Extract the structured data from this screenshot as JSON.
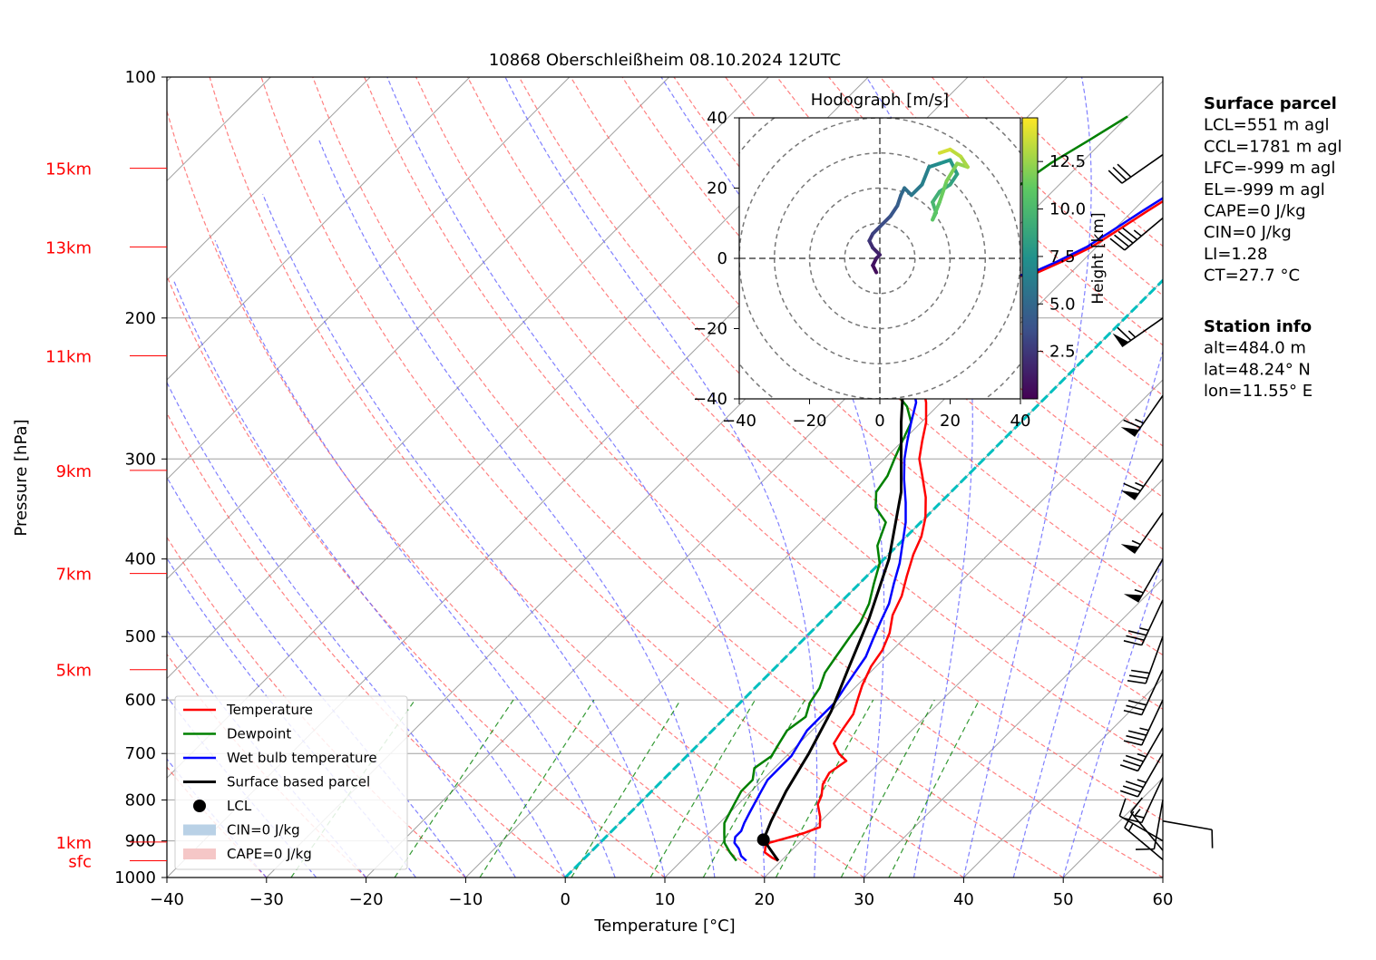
{
  "chart_data": {
    "type": "skew-t log-p",
    "title": "10868 Oberschleißheim 08.10.2024 12UTC",
    "xlabel": "Temperature [°C]",
    "ylabel": "Pressure [hPa]",
    "xlim": [
      -40,
      60
    ],
    "ylim": [
      1000,
      100
    ],
    "y_scale": "log",
    "x_ticks": [
      "−40",
      "−30",
      "−20",
      "−10",
      "0",
      "10",
      "20",
      "30",
      "40",
      "50",
      "60"
    ],
    "y_ticks": [
      "100",
      "200",
      "300",
      "400",
      "500",
      "600",
      "700",
      "800",
      "900",
      "1000"
    ],
    "height_labels": [
      {
        "label": "15km",
        "p": 130
      },
      {
        "label": "13km",
        "p": 163
      },
      {
        "label": "11km",
        "p": 223
      },
      {
        "label": "9km",
        "p": 310
      },
      {
        "label": "7km",
        "p": 417
      },
      {
        "label": "5km",
        "p": 550
      },
      {
        "label": "1km",
        "p": 903
      },
      {
        "label": "sfc",
        "p": 953
      }
    ],
    "series": [
      {
        "name": "Temperature",
        "color": "#ff0000",
        "points": [
          [
            19.7,
            953
          ],
          [
            18.8,
            945
          ],
          [
            17.5,
            930
          ],
          [
            17.0,
            915
          ],
          [
            17.0,
            905
          ],
          [
            18.0,
            895
          ],
          [
            19.5,
            880
          ],
          [
            20.5,
            865
          ],
          [
            19.5,
            840
          ],
          [
            18.0,
            810
          ],
          [
            17.5,
            790
          ],
          [
            16.5,
            765
          ],
          [
            16.0,
            740
          ],
          [
            16.5,
            715
          ],
          [
            15.0,
            700
          ],
          [
            13.5,
            680
          ],
          [
            13.0,
            655
          ],
          [
            12.5,
            625
          ],
          [
            11.5,
            600
          ],
          [
            10.5,
            575
          ],
          [
            9.5,
            545
          ],
          [
            9.0,
            520
          ],
          [
            8.0,
            495
          ],
          [
            6.5,
            470
          ],
          [
            5.5,
            445
          ],
          [
            4.0,
            420
          ],
          [
            2.5,
            395
          ],
          [
            1.5,
            375
          ],
          [
            0.0,
            355
          ],
          [
            -2.0,
            335
          ],
          [
            -4.5,
            315
          ],
          [
            -6.5,
            300
          ],
          [
            -8.0,
            285
          ],
          [
            -9.5,
            270
          ],
          [
            -11.5,
            255
          ],
          [
            -14.0,
            240
          ],
          [
            -16.0,
            225
          ],
          [
            -17.5,
            212
          ],
          [
            -19.0,
            203
          ],
          [
            -20.0,
            196
          ],
          [
            -19.5,
            186
          ],
          [
            -17.5,
            180
          ],
          [
            -13.5,
            176
          ],
          [
            -12.0,
            170
          ],
          [
            -10.5,
            163
          ],
          [
            -9.5,
            155
          ],
          [
            -8.5,
            147
          ],
          [
            -7.5,
            140
          ],
          [
            -6.5,
            135
          ],
          [
            -5.5,
            128
          ],
          [
            -4.0,
            122
          ],
          [
            -2.5,
            118
          ]
        ]
      },
      {
        "name": "Dewpoint",
        "color": "#008000",
        "points": [
          [
            15.5,
            953
          ],
          [
            14.0,
            930
          ],
          [
            12.5,
            905
          ],
          [
            11.5,
            880
          ],
          [
            10.5,
            855
          ],
          [
            10.0,
            830
          ],
          [
            9.5,
            805
          ],
          [
            9.0,
            780
          ],
          [
            9.0,
            755
          ],
          [
            8.0,
            730
          ],
          [
            8.5,
            705
          ],
          [
            8.0,
            680
          ],
          [
            7.5,
            655
          ],
          [
            8.0,
            630
          ],
          [
            7.0,
            605
          ],
          [
            6.5,
            580
          ],
          [
            5.5,
            555
          ],
          [
            5.0,
            530
          ],
          [
            4.5,
            505
          ],
          [
            4.0,
            480
          ],
          [
            3.0,
            455
          ],
          [
            1.5,
            430
          ],
          [
            0.0,
            405
          ],
          [
            -2.0,
            385
          ],
          [
            -3.5,
            360
          ],
          [
            -6.0,
            345
          ],
          [
            -7.5,
            330
          ],
          [
            -8.0,
            315
          ],
          [
            -9.0,
            300
          ],
          [
            -10.0,
            285
          ],
          [
            -11.0,
            270
          ],
          [
            -13.0,
            258
          ],
          [
            -15.5,
            248
          ],
          [
            -17.0,
            238
          ],
          [
            -17.5,
            228
          ],
          [
            -19.0,
            220
          ],
          [
            -19.5,
            210
          ],
          [
            -21.0,
            200
          ],
          [
            -21.0,
            190
          ],
          [
            -24.0,
            182
          ],
          [
            -23.5,
            175
          ],
          [
            -28.0,
            168
          ],
          [
            -33.0,
            164
          ],
          [
            -26.5,
            160
          ],
          [
            -24.5,
            153
          ],
          [
            -25.0,
            145
          ],
          [
            -24.0,
            137
          ],
          [
            -23.0,
            128
          ],
          [
            -21.5,
            120
          ],
          [
            -20.0,
            112
          ]
        ]
      },
      {
        "name": "Wet bulb temperature",
        "color": "#0000ff",
        "points": [
          [
            16.5,
            953
          ],
          [
            15.5,
            940
          ],
          [
            14.5,
            920
          ],
          [
            13.5,
            905
          ],
          [
            13.0,
            890
          ],
          [
            13.0,
            875
          ],
          [
            12.5,
            855
          ],
          [
            12.0,
            830
          ],
          [
            11.5,
            805
          ],
          [
            11.0,
            780
          ],
          [
            10.5,
            755
          ],
          [
            10.5,
            730
          ],
          [
            10.5,
            705
          ],
          [
            10.0,
            680
          ],
          [
            9.5,
            655
          ],
          [
            9.5,
            630
          ],
          [
            9.5,
            605
          ],
          [
            9.0,
            580
          ],
          [
            8.5,
            555
          ],
          [
            8.0,
            530
          ],
          [
            7.0,
            505
          ],
          [
            6.0,
            480
          ],
          [
            5.0,
            455
          ],
          [
            3.5,
            430
          ],
          [
            2.0,
            405
          ],
          [
            0.5,
            385
          ],
          [
            -1.5,
            360
          ],
          [
            -3.5,
            340
          ],
          [
            -6.0,
            318
          ],
          [
            -8.0,
            300
          ],
          [
            -9.5,
            285
          ],
          [
            -11.0,
            270
          ],
          [
            -12.5,
            255
          ],
          [
            -15.0,
            240
          ],
          [
            -16.5,
            225
          ],
          [
            -18.0,
            212
          ],
          [
            -19.5,
            203
          ],
          [
            -20.5,
            196
          ],
          [
            -20.0,
            186
          ],
          [
            -18.0,
            180
          ],
          [
            -14.0,
            176
          ],
          [
            -12.5,
            170
          ],
          [
            -11.0,
            163
          ],
          [
            -10.0,
            155
          ],
          [
            -9.0,
            147
          ],
          [
            -8.0,
            140
          ],
          [
            -7.0,
            135
          ],
          [
            -6.0,
            128
          ],
          [
            -4.5,
            122
          ],
          [
            -3.0,
            118
          ]
        ]
      },
      {
        "name": "Surface based parcel",
        "color": "#000000",
        "points": [
          [
            19.7,
            953
          ],
          [
            16.1,
            897
          ],
          [
            15.0,
            850
          ],
          [
            13.5,
            780
          ],
          [
            12.0,
            700
          ],
          [
            10.0,
            620
          ],
          [
            7.5,
            550
          ],
          [
            4.5,
            475
          ],
          [
            0.5,
            400
          ],
          [
            -5.0,
            330
          ],
          [
            -12.0,
            270
          ],
          [
            -19.5,
            215
          ],
          [
            -26.0,
            178
          ],
          [
            -31.5,
            150
          ],
          [
            -36.0,
            130
          ],
          [
            -40.0,
            115
          ]
        ]
      }
    ],
    "lcl": {
      "label": "LCL",
      "t": 16.1,
      "p": 897
    },
    "cin_label": "CIN=0 J/kg",
    "cape_label": "CAPE=0 J/kg",
    "wind_barbs": [
      {
        "p": 950,
        "speed": 15,
        "dir": 310
      },
      {
        "p": 925,
        "speed": 15,
        "dir": 320
      },
      {
        "p": 900,
        "speed": 10,
        "dir": 300
      },
      {
        "p": 850,
        "speed": 10,
        "dir": 100
      },
      {
        "p": 800,
        "speed": 10,
        "dir": 190
      },
      {
        "p": 750,
        "speed": 15,
        "dir": 205
      },
      {
        "p": 700,
        "speed": 35,
        "dir": 210
      },
      {
        "p": 650,
        "speed": 35,
        "dir": 210
      },
      {
        "p": 600,
        "speed": 35,
        "dir": 205
      },
      {
        "p": 550,
        "speed": 30,
        "dir": 205
      },
      {
        "p": 500,
        "speed": 30,
        "dir": 200
      },
      {
        "p": 450,
        "speed": 35,
        "dir": 205
      },
      {
        "p": 400,
        "speed": 55,
        "dir": 210
      },
      {
        "p": 350,
        "speed": 55,
        "dir": 215
      },
      {
        "p": 300,
        "speed": 65,
        "dir": 215
      },
      {
        "p": 250,
        "speed": 65,
        "dir": 215
      },
      {
        "p": 200,
        "speed": 65,
        "dir": 235
      },
      {
        "p": 150,
        "speed": 45,
        "dir": 230
      },
      {
        "p": 125,
        "speed": 30,
        "dir": 235
      }
    ],
    "hodograph": {
      "title": "Hodograph [m/s]",
      "xlim": [
        -40,
        40
      ],
      "ylim": [
        -40,
        40
      ],
      "ticks": [
        "−40",
        "−20",
        "0",
        "20",
        "40"
      ],
      "colorbar_label": "Height [km]",
      "colorbar_ticks": [
        "2.5",
        "5.0",
        "7.5",
        "10.0",
        "12.5"
      ],
      "points": [
        [
          -1,
          -4,
          0.5
        ],
        [
          -2,
          -2,
          0.8
        ],
        [
          -1,
          0,
          1.2
        ],
        [
          0,
          1,
          1.5
        ],
        [
          -2,
          3,
          2.0
        ],
        [
          -3,
          5,
          2.5
        ],
        [
          -2,
          7,
          3.0
        ],
        [
          0,
          9,
          3.5
        ],
        [
          3,
          12,
          4.0
        ],
        [
          5,
          15,
          4.5
        ],
        [
          6,
          18,
          5.0
        ],
        [
          7,
          20,
          5.5
        ],
        [
          9,
          18,
          6.0
        ],
        [
          12,
          21,
          6.5
        ],
        [
          14,
          26,
          7.0
        ],
        [
          17,
          27,
          7.5
        ],
        [
          20,
          28,
          8.0
        ],
        [
          22,
          24,
          8.5
        ],
        [
          20,
          21,
          9.0
        ],
        [
          17,
          19,
          9.5
        ],
        [
          15,
          16,
          10.0
        ],
        [
          16,
          13,
          10.5
        ],
        [
          15,
          11,
          11.0
        ],
        [
          17,
          16,
          11.5
        ],
        [
          19,
          22,
          12.0
        ],
        [
          22,
          27,
          12.5
        ],
        [
          25,
          26,
          13.0
        ],
        [
          23,
          29,
          13.5
        ],
        [
          20,
          31,
          14.0
        ],
        [
          17,
          30,
          14.5
        ]
      ]
    },
    "surface_parcel": {
      "heading": "Surface parcel",
      "lines": [
        "LCL=551 m agl",
        "CCL=1781 m agl",
        "LFC=-999 m agl",
        "EL=-999 m agl",
        "CAPE=0 J/kg",
        "CIN=0 J/kg",
        "LI=1.28",
        "CT=27.7 °C"
      ]
    },
    "station_info": {
      "heading": "Station info",
      "lines": [
        "alt=484.0 m",
        "lat=48.24° N",
        "lon=11.55° E"
      ]
    },
    "colors": {
      "isotherm": "#a0a0a0",
      "dry_adiabat": "#ff6060",
      "moist_adiabat": "#6060ff",
      "mixing_ratio": "#008000",
      "zero_isotherm": "#00bfbf"
    }
  }
}
